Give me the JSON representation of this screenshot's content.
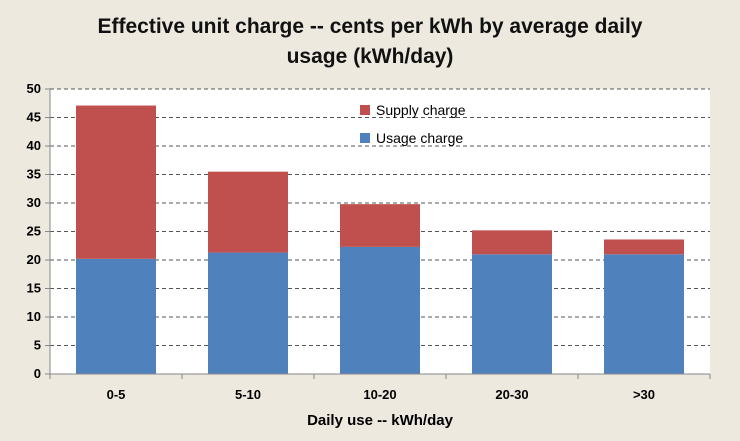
{
  "chart_data": {
    "type": "bar",
    "stacked": true,
    "title_line1": "Effective unit charge -- cents per kWh by average daily",
    "title_line2": "usage (kWh/day)",
    "xlabel": "Daily use -- kWh/day",
    "ylabel": "",
    "ylim": [
      0,
      50
    ],
    "yticks": [
      "0",
      "5",
      "10",
      "15",
      "20",
      "25",
      "30",
      "35",
      "40",
      "45",
      "50"
    ],
    "grid": true,
    "legend_position": "top-center",
    "categories": [
      "0-5",
      "5-10",
      "10-20",
      "20-30",
      ">30"
    ],
    "series": [
      {
        "name": "Usage charge",
        "color": "#4f81bd",
        "values": [
          20.2,
          21.3,
          22.3,
          21.0,
          21.0
        ]
      },
      {
        "name": "Supply charge",
        "color": "#c0504d",
        "values": [
          26.9,
          14.2,
          7.5,
          4.2,
          2.6
        ]
      }
    ],
    "legend_order": [
      "Supply charge",
      "Usage charge"
    ]
  }
}
